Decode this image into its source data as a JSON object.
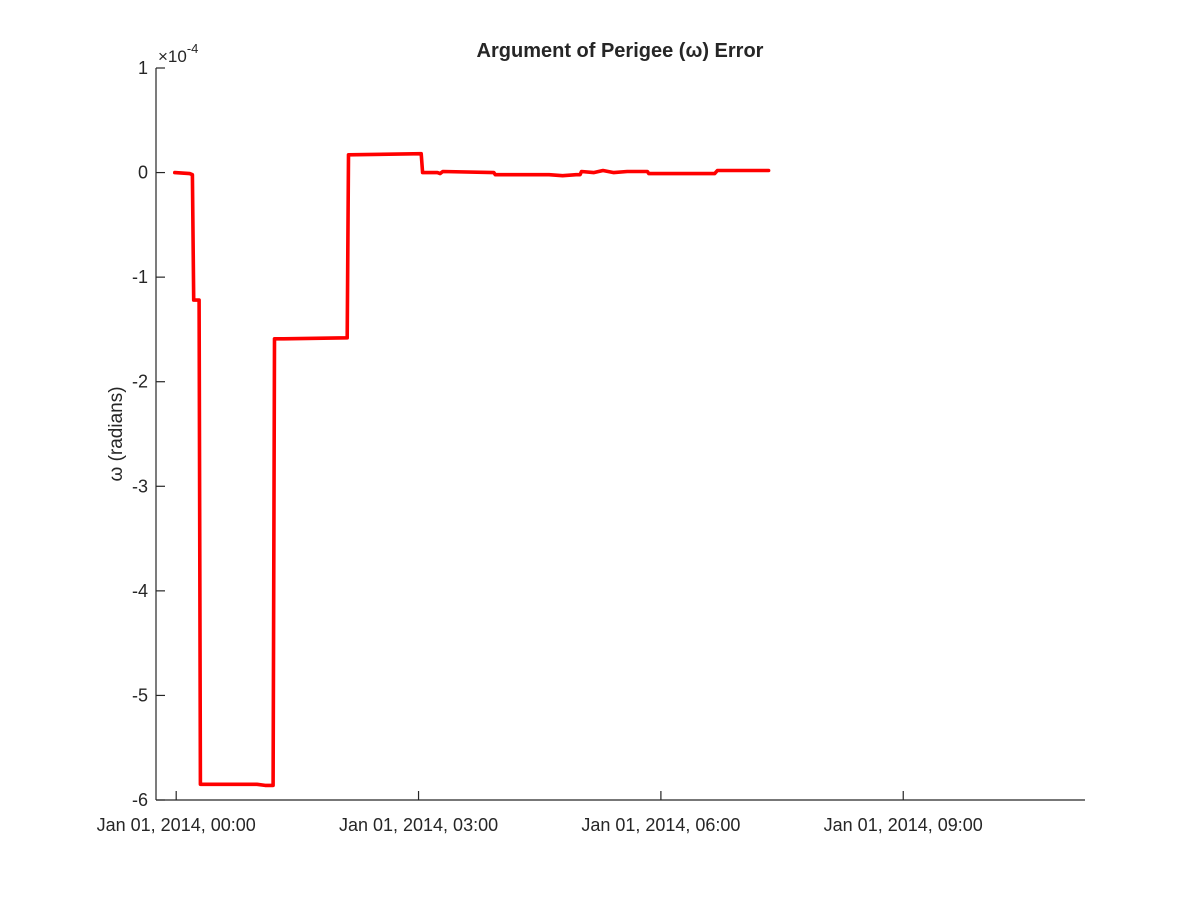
{
  "chart_data": {
    "type": "line",
    "title": "Argument of Perigee (ω) Error",
    "xlabel": "",
    "ylabel": "ω (radians)",
    "y_exponent_label": "×10",
    "y_exponent_power": "-4",
    "y_scale": 0.0001,
    "ylim": [
      -6,
      1
    ],
    "y_ticks": [
      1,
      0,
      -1,
      -2,
      -3,
      -4,
      -5,
      -6
    ],
    "xlim": [
      "2013-12-31T23:45",
      "2014-01-01T11:15"
    ],
    "x_ticks": [
      {
        "value": "2014-01-01T00:00",
        "label": "Jan 01, 2014, 00:00"
      },
      {
        "value": "2014-01-01T03:00",
        "label": "Jan 01, 2014, 03:00"
      },
      {
        "value": "2014-01-01T06:00",
        "label": "Jan 01, 2014, 06:00"
      },
      {
        "value": "2014-01-01T09:00",
        "label": "Jan 01, 2014, 09:00"
      }
    ],
    "grid": false,
    "series": [
      {
        "color": "#ff0000",
        "step": true,
        "points": [
          [
            "2013-12-31T23:59",
            0.0
          ],
          [
            "2014-01-01T00:10",
            -0.01
          ],
          [
            "2014-01-01T00:12",
            -0.02
          ],
          [
            "2014-01-01T00:13",
            -1.22
          ],
          [
            "2014-01-01T00:17",
            -1.22
          ],
          [
            "2014-01-01T00:18",
            -5.85
          ],
          [
            "2014-01-01T01:00",
            -5.85
          ],
          [
            "2014-01-01T01:06",
            -5.86
          ],
          [
            "2014-01-01T01:12",
            -5.86
          ],
          [
            "2014-01-01T01:13",
            -1.59
          ],
          [
            "2014-01-01T01:20",
            -1.59
          ],
          [
            "2014-01-01T02:07",
            -1.58
          ],
          [
            "2014-01-01T02:08",
            0.17
          ],
          [
            "2014-01-01T03:02",
            0.18
          ],
          [
            "2014-01-01T03:03",
            0.0
          ],
          [
            "2014-01-01T03:14",
            0.0
          ],
          [
            "2014-01-01T03:16",
            -0.01
          ],
          [
            "2014-01-01T03:18",
            0.01
          ],
          [
            "2014-01-01T03:56",
            0.0
          ],
          [
            "2014-01-01T03:57",
            -0.02
          ],
          [
            "2014-01-01T04:37",
            -0.02
          ],
          [
            "2014-01-01T04:47",
            -0.03
          ],
          [
            "2014-01-01T04:57",
            -0.02
          ],
          [
            "2014-01-01T05:00",
            -0.02
          ],
          [
            "2014-01-01T05:01",
            0.01
          ],
          [
            "2014-01-01T05:10",
            0.0
          ],
          [
            "2014-01-01T05:17",
            0.02
          ],
          [
            "2014-01-01T05:25",
            0.0
          ],
          [
            "2014-01-01T05:35",
            0.01
          ],
          [
            "2014-01-01T05:50",
            0.01
          ],
          [
            "2014-01-01T05:51",
            -0.01
          ],
          [
            "2014-01-01T06:40",
            -0.01
          ],
          [
            "2014-01-01T06:42",
            0.02
          ],
          [
            "2014-01-01T07:20",
            0.02
          ]
        ]
      }
    ]
  }
}
